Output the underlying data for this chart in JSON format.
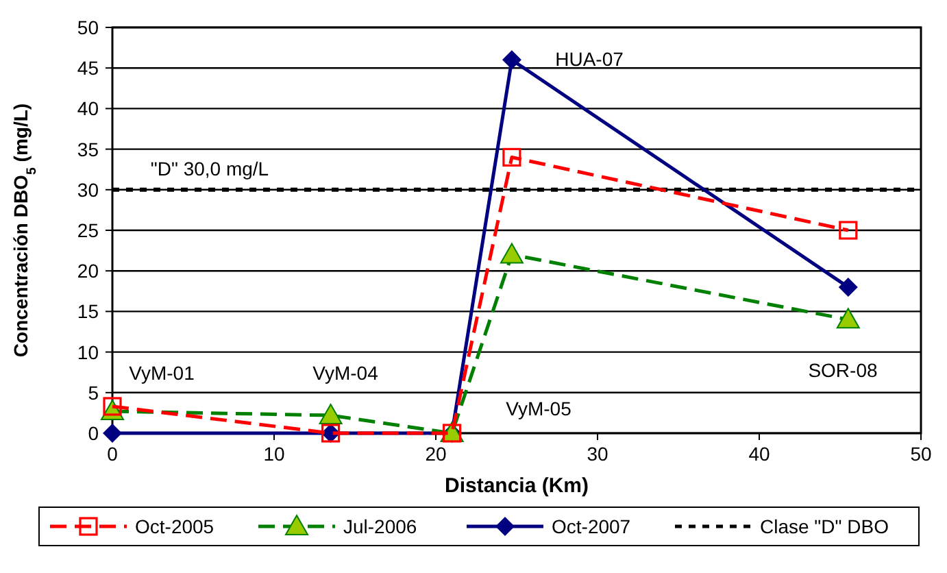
{
  "chart_data": {
    "type": "line",
    "xlabel": "Distancia (Km)",
    "ylabel": "Concentración DBO$_{5}$ (mg/L)",
    "x": [
      0,
      13.5,
      21,
      24.7,
      45.5
    ],
    "series": [
      {
        "name": "Oct-2005",
        "color": "#ff0000",
        "values": [
          3.3,
          0,
          0,
          34,
          25
        ],
        "marker": "square",
        "line_style": "dashed"
      },
      {
        "name": "Jul-2006",
        "color": "#008000",
        "values": [
          2.7,
          2.2,
          0,
          22,
          14
        ],
        "marker": "triangle",
        "line_style": "dashed"
      },
      {
        "name": "Oct-2007",
        "color": "#000080",
        "values": [
          0,
          0,
          0,
          46,
          18
        ],
        "marker": "diamond",
        "line_style": "solid"
      }
    ],
    "ref_lines": [
      {
        "axis": "y",
        "value": 30,
        "label": "Clase \"D\" DBO",
        "color": "#000000",
        "line_style": "dotted"
      }
    ],
    "annotations": [
      "\"D\" 30,0 mg/L",
      "VyM-01",
      "VyM-04",
      "VyM-05",
      "HUA-07",
      "SOR-08"
    ],
    "xlim": [
      0,
      50
    ],
    "xticks": [
      0,
      10,
      20,
      30,
      40,
      50
    ],
    "ylim": [
      0,
      50
    ],
    "yticks": [
      0,
      5,
      10,
      15,
      20,
      25,
      30,
      35,
      40,
      45,
      50
    ],
    "grid": "y",
    "legend": "bottom"
  }
}
